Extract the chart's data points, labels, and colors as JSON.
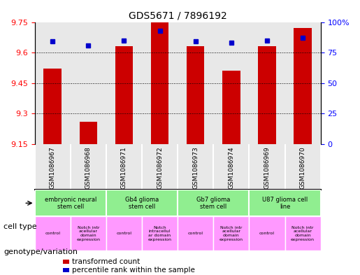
{
  "title": "GDS5671 / 7896192",
  "samples": [
    "GSM1086967",
    "GSM1086968",
    "GSM1086971",
    "GSM1086972",
    "GSM1086973",
    "GSM1086974",
    "GSM1086969",
    "GSM1086970"
  ],
  "red_values": [
    9.52,
    9.26,
    9.63,
    9.75,
    9.63,
    9.51,
    9.63,
    9.72
  ],
  "blue_values": [
    84,
    81,
    85,
    93,
    84,
    83,
    85,
    87
  ],
  "ylim_left": [
    9.15,
    9.75
  ],
  "ylim_right": [
    0,
    100
  ],
  "yticks_left": [
    9.15,
    9.3,
    9.45,
    9.6,
    9.75
  ],
  "yticks_right": [
    0,
    25,
    50,
    75,
    100
  ],
  "ytick_labels_right": [
    "0",
    "25",
    "50",
    "75",
    "100%"
  ],
  "bar_color": "#cc0000",
  "dot_color": "#0000cc",
  "bar_width": 0.5,
  "cell_types": [
    {
      "label": "embryonic neural\nstem cell",
      "span": [
        0,
        2
      ],
      "color": "#90ee90"
    },
    {
      "label": "Gb4 glioma\nstem cell",
      "span": [
        2,
        4
      ],
      "color": "#90ee90"
    },
    {
      "label": "Gb7 glioma\nstem cell",
      "span": [
        4,
        6
      ],
      "color": "#90ee90"
    },
    {
      "label": "U87 glioma cell\nline",
      "span": [
        6,
        8
      ],
      "color": "#90ee90"
    }
  ],
  "genotype_labels": [
    {
      "label": "control",
      "span": [
        0,
        1
      ],
      "color": "#ff99ff"
    },
    {
      "label": "Notch intr\nacellular\ndomain\nexpression",
      "span": [
        1,
        2
      ],
      "color": "#ff99ff"
    },
    {
      "label": "control",
      "span": [
        2,
        3
      ],
      "color": "#ff99ff"
    },
    {
      "label": "Notch\nintracellul\nar domain\nexpression",
      "span": [
        3,
        4
      ],
      "color": "#ff99ff"
    },
    {
      "label": "control",
      "span": [
        4,
        5
      ],
      "color": "#ff99ff"
    },
    {
      "label": "Notch intr\nacellular\ndomain\nexpression",
      "span": [
        5,
        6
      ],
      "color": "#ff99ff"
    },
    {
      "label": "control",
      "span": [
        6,
        7
      ],
      "color": "#ff99ff"
    },
    {
      "label": "Notch intr\nacellular\ndomain\nexpression",
      "span": [
        7,
        8
      ],
      "color": "#ff99ff"
    }
  ],
  "legend_red": "transformed count",
  "legend_blue": "percentile rank within the sample",
  "left_label": "cell type",
  "right_label": "genotype/variation",
  "grid_color": "#000000",
  "background_color": "#ffffff",
  "plot_bg": "#e8e8e8"
}
